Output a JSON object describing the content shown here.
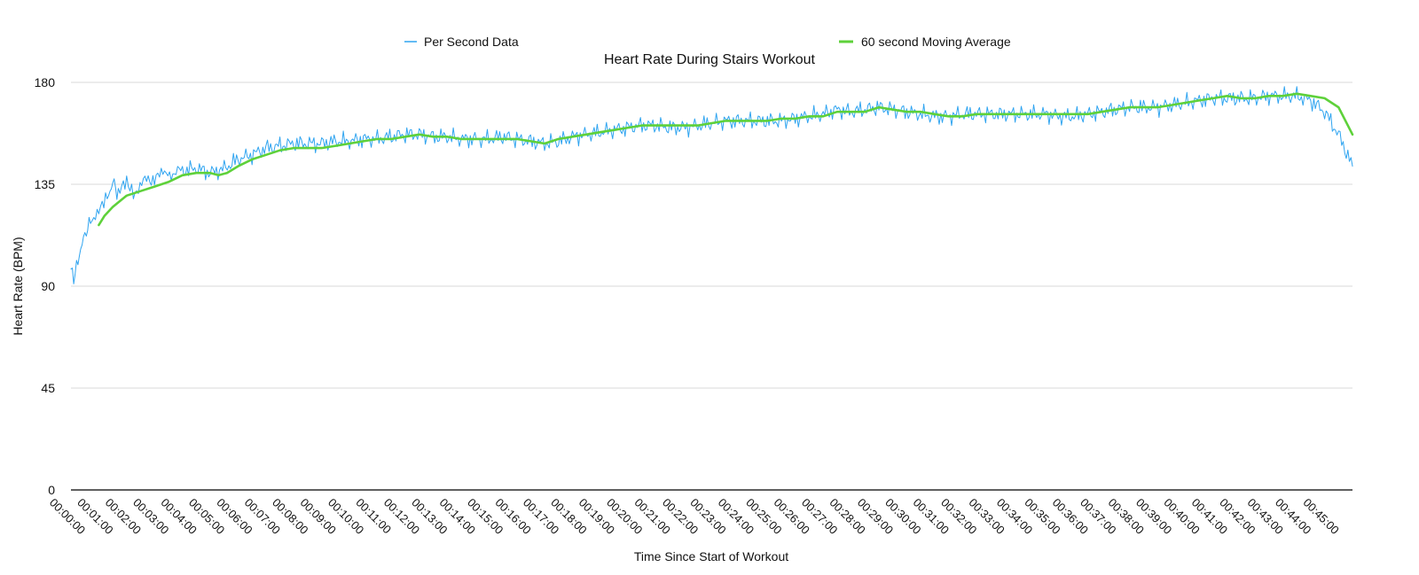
{
  "chart_data": {
    "type": "line",
    "title": "Heart Rate During Stairs Workout",
    "xlabel": "Time Since Start of Workout",
    "ylabel": "Heart Rate (BPM)",
    "ylim": [
      0,
      180
    ],
    "yticks": [
      0,
      45,
      90,
      135,
      180
    ],
    "xticks": [
      "00:00:00",
      "00:01:00",
      "00:02:00",
      "00:03:00",
      "00:04:00",
      "00:05:00",
      "00:06:00",
      "00:07:00",
      "00:08:00",
      "00:09:00",
      "00:10:00",
      "00:11:00",
      "00:12:00",
      "00:13:00",
      "00:14:00",
      "00:15:00",
      "00:16:00",
      "00:17:00",
      "00:18:00",
      "00:19:00",
      "00:20:00",
      "00:21:00",
      "00:22:00",
      "00:23:00",
      "00:24:00",
      "00:25:00",
      "00:26:00",
      "00:27:00",
      "00:28:00",
      "00:29:00",
      "00:30:00",
      "00:31:00",
      "00:32:00",
      "00:33:00",
      "00:34:00",
      "00:35:00",
      "00:36:00",
      "00:37:00",
      "00:38:00",
      "00:39:00",
      "00:40:00",
      "00:41:00",
      "00:42:00",
      "00:43:00",
      "00:44:00",
      "00:45:00"
    ],
    "x_unit": "minutes",
    "x_end_minutes": 46,
    "grid": true,
    "legend_position": "top",
    "series": [
      {
        "name": "Per Second Data",
        "color": "#2fa4f0",
        "points": [
          [
            0,
            96
          ],
          [
            0.15,
            95
          ],
          [
            0.3,
            104
          ],
          [
            0.5,
            113
          ],
          [
            0.7,
            118
          ],
          [
            1.0,
            125
          ],
          [
            1.3,
            128
          ],
          [
            1.5,
            136
          ],
          [
            1.7,
            131
          ],
          [
            2,
            135
          ],
          [
            2.3,
            132
          ],
          [
            2.6,
            136
          ],
          [
            3,
            138
          ],
          [
            3.3,
            139
          ],
          [
            3.6,
            140
          ],
          [
            4,
            141
          ],
          [
            4.5,
            142
          ],
          [
            5,
            140
          ],
          [
            5.5,
            142
          ],
          [
            6,
            146
          ],
          [
            6.5,
            148
          ],
          [
            7,
            151
          ],
          [
            7.5,
            152
          ],
          [
            8,
            153
          ],
          [
            8.5,
            153
          ],
          [
            9,
            153
          ],
          [
            9.5,
            154
          ],
          [
            10,
            154
          ],
          [
            10.5,
            155
          ],
          [
            11,
            155
          ],
          [
            11.5,
            156
          ],
          [
            12,
            157
          ],
          [
            12.5,
            157
          ],
          [
            13,
            156
          ],
          [
            13.5,
            156
          ],
          [
            14,
            155
          ],
          [
            14.5,
            155
          ],
          [
            15,
            155
          ],
          [
            15.5,
            156
          ],
          [
            16,
            155
          ],
          [
            16.5,
            154
          ],
          [
            17,
            153
          ],
          [
            17.5,
            154
          ],
          [
            18,
            156
          ],
          [
            18.5,
            157
          ],
          [
            19,
            158
          ],
          [
            19.5,
            159
          ],
          [
            20,
            160
          ],
          [
            20.5,
            161
          ],
          [
            21,
            161
          ],
          [
            21.5,
            160
          ],
          [
            22,
            160
          ],
          [
            22.5,
            161
          ],
          [
            23,
            162
          ],
          [
            23.5,
            163
          ],
          [
            24,
            163
          ],
          [
            24.5,
            163
          ],
          [
            25,
            163
          ],
          [
            25.5,
            163
          ],
          [
            26,
            164
          ],
          [
            26.5,
            165
          ],
          [
            27,
            166
          ],
          [
            27.5,
            168
          ],
          [
            28,
            167
          ],
          [
            28.5,
            168
          ],
          [
            29,
            169
          ],
          [
            29.5,
            168
          ],
          [
            30,
            167
          ],
          [
            30.5,
            166
          ],
          [
            31,
            165
          ],
          [
            31.5,
            165
          ],
          [
            32,
            166
          ],
          [
            32.5,
            166
          ],
          [
            33,
            166
          ],
          [
            33.5,
            166
          ],
          [
            34,
            166
          ],
          [
            34.5,
            166
          ],
          [
            35,
            166
          ],
          [
            35.5,
            165
          ],
          [
            36,
            165
          ],
          [
            36.5,
            166
          ],
          [
            37,
            167
          ],
          [
            37.5,
            168
          ],
          [
            38,
            169
          ],
          [
            38.5,
            169
          ],
          [
            39,
            169
          ],
          [
            39.5,
            170
          ],
          [
            40,
            171
          ],
          [
            40.5,
            172
          ],
          [
            41,
            173
          ],
          [
            41.5,
            173
          ],
          [
            42,
            173
          ],
          [
            42.5,
            173
          ],
          [
            43,
            174
          ],
          [
            43.5,
            174
          ],
          [
            44,
            174
          ],
          [
            44.5,
            172
          ],
          [
            45,
            167
          ],
          [
            45.5,
            157
          ],
          [
            46,
            143
          ]
        ]
      },
      {
        "name": "60 second Moving Average",
        "color": "#5ed13a",
        "points": [
          [
            1.0,
            117
          ],
          [
            1.2,
            121
          ],
          [
            1.5,
            125
          ],
          [
            1.8,
            128
          ],
          [
            2,
            130
          ],
          [
            2.5,
            132
          ],
          [
            3,
            134
          ],
          [
            3.5,
            136
          ],
          [
            4,
            139
          ],
          [
            4.5,
            140
          ],
          [
            5,
            140
          ],
          [
            5.3,
            139
          ],
          [
            5.6,
            140
          ],
          [
            6,
            143
          ],
          [
            6.5,
            146
          ],
          [
            7,
            148
          ],
          [
            7.5,
            150
          ],
          [
            8,
            151
          ],
          [
            8.5,
            151
          ],
          [
            9,
            151
          ],
          [
            9.5,
            152
          ],
          [
            10,
            153
          ],
          [
            10.5,
            154
          ],
          [
            11,
            155
          ],
          [
            11.5,
            155
          ],
          [
            12,
            156
          ],
          [
            12.5,
            157
          ],
          [
            13,
            156
          ],
          [
            13.5,
            156
          ],
          [
            14,
            155
          ],
          [
            14.5,
            155
          ],
          [
            15,
            155
          ],
          [
            15.5,
            155
          ],
          [
            16,
            155
          ],
          [
            16.5,
            154
          ],
          [
            17,
            153
          ],
          [
            17.5,
            155
          ],
          [
            18,
            156
          ],
          [
            18.5,
            157
          ],
          [
            19,
            158
          ],
          [
            19.5,
            159
          ],
          [
            20,
            160
          ],
          [
            20.5,
            161
          ],
          [
            21,
            161
          ],
          [
            21.5,
            161
          ],
          [
            22,
            161
          ],
          [
            22.5,
            161
          ],
          [
            23,
            162
          ],
          [
            23.5,
            163
          ],
          [
            24,
            163
          ],
          [
            24.5,
            163
          ],
          [
            25,
            163
          ],
          [
            25.5,
            164
          ],
          [
            26,
            164
          ],
          [
            26.5,
            165
          ],
          [
            27,
            165
          ],
          [
            27.5,
            167
          ],
          [
            28,
            167
          ],
          [
            28.5,
            167
          ],
          [
            29,
            169
          ],
          [
            29.5,
            168
          ],
          [
            30,
            167
          ],
          [
            30.5,
            167
          ],
          [
            31,
            166
          ],
          [
            31.5,
            165
          ],
          [
            32,
            165
          ],
          [
            32.5,
            166
          ],
          [
            33,
            166
          ],
          [
            33.5,
            166
          ],
          [
            34,
            166
          ],
          [
            34.5,
            166
          ],
          [
            35,
            166
          ],
          [
            35.5,
            166
          ],
          [
            36,
            166
          ],
          [
            36.5,
            166
          ],
          [
            37,
            167
          ],
          [
            37.5,
            168
          ],
          [
            38,
            169
          ],
          [
            38.5,
            169
          ],
          [
            39,
            169
          ],
          [
            39.5,
            170
          ],
          [
            40,
            171
          ],
          [
            40.5,
            172
          ],
          [
            41,
            173
          ],
          [
            41.5,
            174
          ],
          [
            42,
            173
          ],
          [
            42.5,
            173
          ],
          [
            43,
            174
          ],
          [
            43.5,
            174
          ],
          [
            44,
            175
          ],
          [
            44.5,
            174
          ],
          [
            45,
            173
          ],
          [
            45.5,
            169
          ],
          [
            46,
            157
          ]
        ]
      }
    ]
  }
}
